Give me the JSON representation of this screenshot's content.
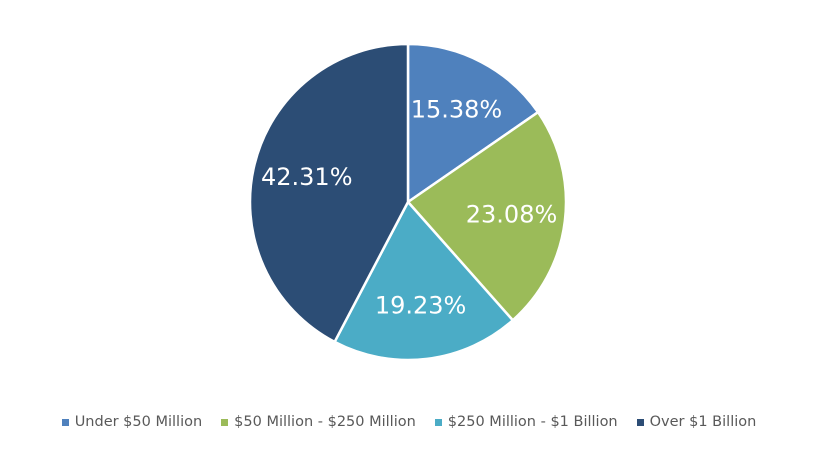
{
  "chart_data": {
    "type": "pie",
    "title": "",
    "categories": [
      "Under $50 Million",
      "$50 Million - $250 Million",
      "$250 Million - $1 Billion",
      "Over $1 Billion"
    ],
    "values": [
      15.38,
      23.08,
      19.23,
      42.31
    ],
    "labels": [
      "15.38%",
      "23.08%",
      "19.23%",
      "42.31%"
    ],
    "colors": [
      "#4F81BD",
      "#9BBB59",
      "#4BACC6",
      "#2C4D75"
    ],
    "legend_position": "bottom"
  }
}
